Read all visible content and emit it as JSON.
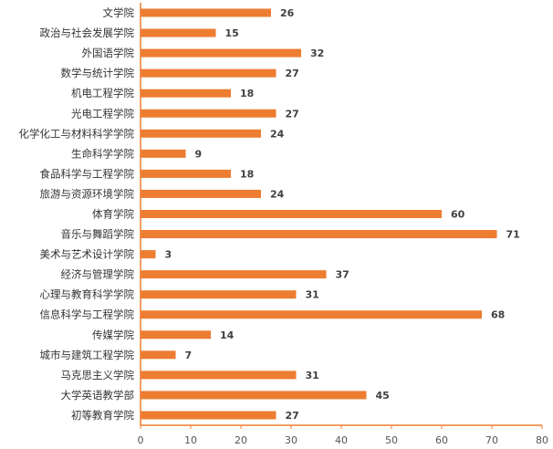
{
  "chart_data": {
    "type": "bar",
    "orientation": "horizontal",
    "title": "",
    "xlabel": "",
    "ylabel": "",
    "xlim": [
      0,
      80
    ],
    "x_ticks": [
      0,
      10,
      20,
      30,
      40,
      50,
      60,
      70,
      80
    ],
    "grid": false,
    "legend": "none",
    "bar_color": "#ED7D31",
    "categories": [
      "文学院",
      "政治与社会发展学院",
      "外国语学院",
      "数学与统计学院",
      "机电工程学院",
      "光电工程学院",
      "化学化工与材料科学学院",
      "生命科学学院",
      "食品科学与工程学院",
      "旅游与资源环境学院",
      "体育学院",
      "音乐与舞蹈学院",
      "美术与艺术设计学院",
      "经济与管理学院",
      "心理与教育科学学院",
      "信息科学与工程学院",
      "传媒学院",
      "城市与建筑工程学院",
      "马克思主义学院",
      "大学英语教学部",
      "初等教育学院"
    ],
    "values": [
      26,
      15,
      32,
      27,
      18,
      27,
      24,
      9,
      18,
      24,
      60,
      71,
      3,
      37,
      31,
      68,
      14,
      7,
      31,
      45,
      27
    ]
  }
}
